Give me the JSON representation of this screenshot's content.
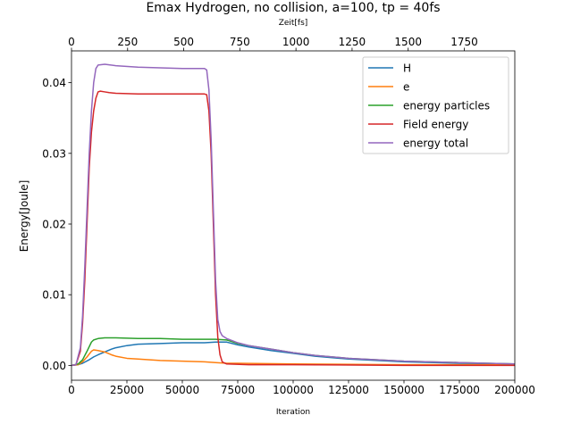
{
  "chart_data": {
    "type": "line",
    "title": "Emax Hydrogen, no collision, a=100, tp = 40fs",
    "xlabel": "Iteration",
    "ylabel": "Energy[Joule]",
    "top_xlabel": "Zeit[fs]",
    "xlim": [
      0,
      200000
    ],
    "ylim": [
      -0.0021,
      0.0445
    ],
    "top_xlim": [
      0,
      1975
    ],
    "xticks": [
      0,
      25000,
      50000,
      75000,
      100000,
      125000,
      150000,
      175000,
      200000
    ],
    "yticks": [
      0.0,
      0.01,
      0.02,
      0.03,
      0.04
    ],
    "yticklabels": [
      "0.00",
      "0.01",
      "0.02",
      "0.03",
      "0.04"
    ],
    "top_xticks": [
      0,
      250,
      500,
      750,
      1000,
      1250,
      1500,
      1750
    ],
    "grid": false,
    "legend_position": "upper-right",
    "series": [
      {
        "name": "H",
        "color": "#1f77b4",
        "points": [
          [
            0,
            0
          ],
          [
            3000,
            0.0001
          ],
          [
            5000,
            0.0003
          ],
          [
            8000,
            0.0008
          ],
          [
            10000,
            0.0012
          ],
          [
            12000,
            0.0015
          ],
          [
            15000,
            0.0019
          ],
          [
            18000,
            0.0023
          ],
          [
            20000,
            0.0025
          ],
          [
            25000,
            0.0028
          ],
          [
            30000,
            0.003
          ],
          [
            40000,
            0.0031
          ],
          [
            50000,
            0.0032
          ],
          [
            60000,
            0.0032
          ],
          [
            65000,
            0.0033
          ],
          [
            68000,
            0.0033
          ],
          [
            70000,
            0.0033
          ],
          [
            75000,
            0.0029
          ],
          [
            80000,
            0.0026
          ],
          [
            90000,
            0.0021
          ],
          [
            100000,
            0.0017
          ],
          [
            110000,
            0.0013
          ],
          [
            125000,
            0.0009
          ],
          [
            150000,
            0.0005
          ],
          [
            175000,
            0.0003
          ],
          [
            200000,
            0.0002
          ]
        ]
      },
      {
        "name": "e",
        "color": "#ff7f0e",
        "points": [
          [
            0,
            0
          ],
          [
            3000,
            0.0001
          ],
          [
            5000,
            0.0005
          ],
          [
            7000,
            0.0012
          ],
          [
            9000,
            0.002
          ],
          [
            10000,
            0.0022
          ],
          [
            12000,
            0.0021
          ],
          [
            15000,
            0.0019
          ],
          [
            18000,
            0.0015
          ],
          [
            20000,
            0.0013
          ],
          [
            25000,
            0.001
          ],
          [
            30000,
            0.0009
          ],
          [
            40000,
            0.0007
          ],
          [
            50000,
            0.0006
          ],
          [
            60000,
            0.0005
          ],
          [
            65000,
            0.0004
          ],
          [
            70000,
            0.0003
          ],
          [
            75000,
            0.0003
          ],
          [
            100000,
            0.0002
          ],
          [
            150000,
            0.0001
          ],
          [
            200000,
            0.0001
          ]
        ]
      },
      {
        "name": "energy particles",
        "color": "#2ca02c",
        "points": [
          [
            0,
            0
          ],
          [
            3000,
            0.0002
          ],
          [
            5000,
            0.0008
          ],
          [
            7000,
            0.002
          ],
          [
            9000,
            0.0033
          ],
          [
            10000,
            0.0036
          ],
          [
            12000,
            0.0038
          ],
          [
            15000,
            0.0039
          ],
          [
            20000,
            0.0039
          ],
          [
            30000,
            0.0038
          ],
          [
            40000,
            0.0038
          ],
          [
            50000,
            0.0037
          ],
          [
            60000,
            0.0037
          ],
          [
            65000,
            0.0037
          ],
          [
            70000,
            0.0036
          ],
          [
            75000,
            0.0031
          ],
          [
            80000,
            0.0028
          ],
          [
            90000,
            0.0023
          ],
          [
            100000,
            0.0018
          ],
          [
            110000,
            0.0014
          ],
          [
            125000,
            0.001
          ],
          [
            150000,
            0.0006
          ],
          [
            175000,
            0.0004
          ],
          [
            200000,
            0.0002
          ]
        ]
      },
      {
        "name": "Field energy",
        "color": "#d62728",
        "points": [
          [
            0,
            0
          ],
          [
            2000,
            0.0001
          ],
          [
            4000,
            0.002
          ],
          [
            5000,
            0.006
          ],
          [
            6000,
            0.012
          ],
          [
            7000,
            0.02
          ],
          [
            8000,
            0.028
          ],
          [
            9000,
            0.033
          ],
          [
            10000,
            0.036
          ],
          [
            11000,
            0.0378
          ],
          [
            12000,
            0.0387
          ],
          [
            13000,
            0.0388
          ],
          [
            15000,
            0.0387
          ],
          [
            17000,
            0.0386
          ],
          [
            20000,
            0.0385
          ],
          [
            30000,
            0.0384
          ],
          [
            40000,
            0.0384
          ],
          [
            50000,
            0.0384
          ],
          [
            60000,
            0.0384
          ],
          [
            61000,
            0.0383
          ],
          [
            62000,
            0.036
          ],
          [
            63000,
            0.03
          ],
          [
            64000,
            0.02
          ],
          [
            65000,
            0.01
          ],
          [
            66000,
            0.004
          ],
          [
            67000,
            0.0015
          ],
          [
            68000,
            0.0005
          ],
          [
            70000,
            0.0002
          ],
          [
            80000,
            0.0001
          ],
          [
            100000,
            0.0001
          ],
          [
            150000,
            0
          ],
          [
            200000,
            0
          ]
        ]
      },
      {
        "name": "energy total",
        "color": "#9467bd",
        "points": [
          [
            0,
            0
          ],
          [
            2000,
            0.0001
          ],
          [
            4000,
            0.0025
          ],
          [
            5000,
            0.007
          ],
          [
            6000,
            0.014
          ],
          [
            7000,
            0.022
          ],
          [
            8000,
            0.03
          ],
          [
            9000,
            0.036
          ],
          [
            10000,
            0.04
          ],
          [
            11000,
            0.042
          ],
          [
            12000,
            0.0425
          ],
          [
            15000,
            0.0426
          ],
          [
            20000,
            0.0424
          ],
          [
            30000,
            0.0422
          ],
          [
            40000,
            0.0421
          ],
          [
            50000,
            0.042
          ],
          [
            60000,
            0.042
          ],
          [
            61000,
            0.0418
          ],
          [
            62000,
            0.039
          ],
          [
            63000,
            0.032
          ],
          [
            64000,
            0.022
          ],
          [
            65000,
            0.012
          ],
          [
            66000,
            0.0065
          ],
          [
            67000,
            0.0048
          ],
          [
            68000,
            0.0042
          ],
          [
            70000,
            0.0038
          ],
          [
            75000,
            0.0032
          ],
          [
            80000,
            0.0028
          ],
          [
            90000,
            0.0023
          ],
          [
            100000,
            0.0018
          ],
          [
            110000,
            0.0014
          ],
          [
            125000,
            0.001
          ],
          [
            150000,
            0.0006
          ],
          [
            175000,
            0.0004
          ],
          [
            200000,
            0.0002
          ]
        ]
      }
    ]
  }
}
